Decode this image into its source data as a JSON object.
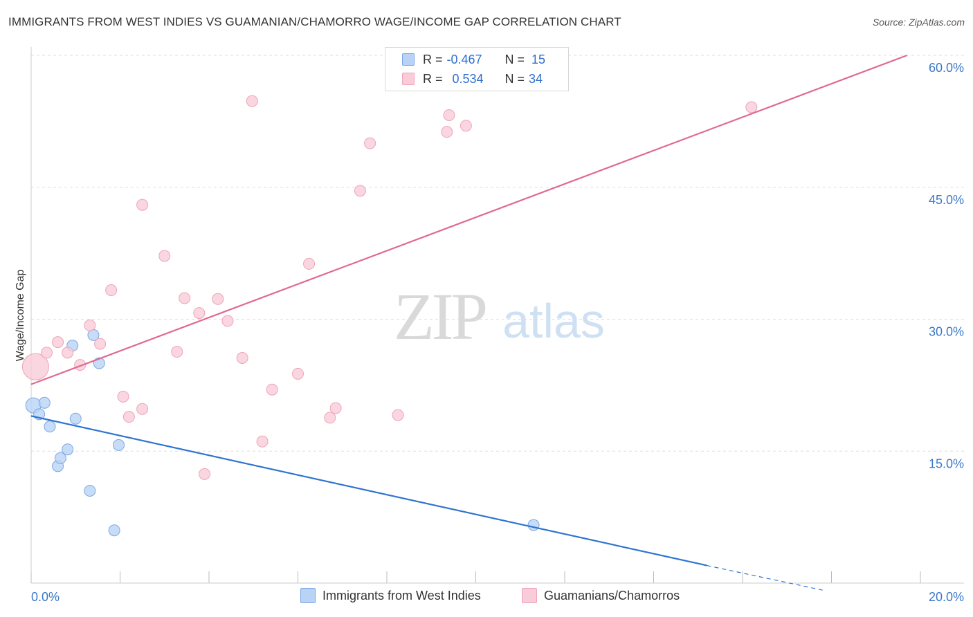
{
  "title": "IMMIGRANTS FROM WEST INDIES VS GUAMANIAN/CHAMORRO WAGE/INCOME GAP CORRELATION CHART",
  "source": "Source: ZipAtlas.com",
  "watermark": {
    "zip": "ZIP",
    "atlas": "atlas"
  },
  "legend": {
    "rows": [
      {
        "r_label": "R =",
        "r_value": "-0.467",
        "n_label": "N =",
        "n_value": "15"
      },
      {
        "r_label": "R =",
        "r_value": "0.534",
        "n_label": "N =",
        "n_value": "34"
      }
    ]
  },
  "bottom_legend": [
    "Immigrants from West Indies",
    "Guamanians/Chamorros"
  ],
  "colors": {
    "blue_fill": "#b8d3f5",
    "blue_stroke": "#7ba7e3",
    "blue_line": "#2e74d1",
    "pink_fill": "#f9ccd9",
    "pink_stroke": "#eea3b9",
    "pink_line": "#e0698f",
    "axis_label": "#3a78c9",
    "grid": "#dedede"
  },
  "chart_data": {
    "type": "scatter",
    "title": "IMMIGRANTS FROM WEST INDIES VS GUAMANIAN/CHAMORRO WAGE/INCOME GAP CORRELATION CHART",
    "xlabel": "",
    "ylabel": "Wage/Income Gap",
    "xlim": [
      0,
      20
    ],
    "ylim": [
      0,
      60
    ],
    "x_tick_labels": [
      "0.0%",
      "20.0%"
    ],
    "y_ticks": [
      15,
      30,
      45,
      60
    ],
    "y_tick_labels": [
      "15.0%",
      "30.0%",
      "45.0%",
      "60.0%"
    ],
    "series": [
      {
        "name": "Immigrants from West Indies",
        "r": -0.467,
        "n": 15,
        "points": [
          {
            "x": 0.05,
            "y": 20.2,
            "big": true
          },
          {
            "x": 0.18,
            "y": 19.2
          },
          {
            "x": 0.3,
            "y": 20.5
          },
          {
            "x": 0.42,
            "y": 17.8
          },
          {
            "x": 0.6,
            "y": 13.3
          },
          {
            "x": 0.66,
            "y": 14.2
          },
          {
            "x": 0.82,
            "y": 15.2
          },
          {
            "x": 0.93,
            "y": 27.0
          },
          {
            "x": 1.0,
            "y": 18.7
          },
          {
            "x": 1.32,
            "y": 10.5
          },
          {
            "x": 1.4,
            "y": 28.2
          },
          {
            "x": 1.53,
            "y": 25.0
          },
          {
            "x": 1.87,
            "y": 6.0
          },
          {
            "x": 1.97,
            "y": 15.7
          },
          {
            "x": 11.3,
            "y": 6.6
          }
        ],
        "trend": {
          "x1": 0.0,
          "y1": 19.0,
          "x2": 15.2,
          "y2": 2.0,
          "dash_to_x": 17.8,
          "dash_to_y": -0.8
        }
      },
      {
        "name": "Guamanians/Chamorros",
        "r": 0.534,
        "n": 34,
        "points": [
          {
            "x": 0.1,
            "y": 24.6,
            "big": true
          },
          {
            "x": 0.35,
            "y": 26.2
          },
          {
            "x": 0.6,
            "y": 27.4
          },
          {
            "x": 0.82,
            "y": 26.2
          },
          {
            "x": 1.1,
            "y": 24.8
          },
          {
            "x": 1.32,
            "y": 29.3
          },
          {
            "x": 1.55,
            "y": 27.2
          },
          {
            "x": 1.8,
            "y": 33.3
          },
          {
            "x": 2.07,
            "y": 21.2
          },
          {
            "x": 2.2,
            "y": 18.9
          },
          {
            "x": 2.5,
            "y": 19.8
          },
          {
            "x": 2.5,
            "y": 43.0
          },
          {
            "x": 3.0,
            "y": 37.2
          },
          {
            "x": 3.28,
            "y": 26.3
          },
          {
            "x": 3.45,
            "y": 32.4
          },
          {
            "x": 3.78,
            "y": 30.7
          },
          {
            "x": 3.9,
            "y": 12.4
          },
          {
            "x": 4.2,
            "y": 32.3
          },
          {
            "x": 4.42,
            "y": 29.8
          },
          {
            "x": 4.75,
            "y": 25.6
          },
          {
            "x": 4.97,
            "y": 54.8
          },
          {
            "x": 5.2,
            "y": 16.1
          },
          {
            "x": 5.42,
            "y": 22.0
          },
          {
            "x": 6.0,
            "y": 23.8
          },
          {
            "x": 6.25,
            "y": 36.3
          },
          {
            "x": 6.72,
            "y": 18.8
          },
          {
            "x": 6.85,
            "y": 19.9
          },
          {
            "x": 7.4,
            "y": 44.6
          },
          {
            "x": 7.62,
            "y": 50.0
          },
          {
            "x": 8.25,
            "y": 19.1
          },
          {
            "x": 9.35,
            "y": 51.3
          },
          {
            "x": 9.4,
            "y": 53.2
          },
          {
            "x": 9.78,
            "y": 52.0
          },
          {
            "x": 16.2,
            "y": 54.1
          }
        ],
        "trend": {
          "x1": 0.0,
          "y1": 22.6,
          "x2": 19.7,
          "y2": 60.0
        }
      }
    ]
  }
}
